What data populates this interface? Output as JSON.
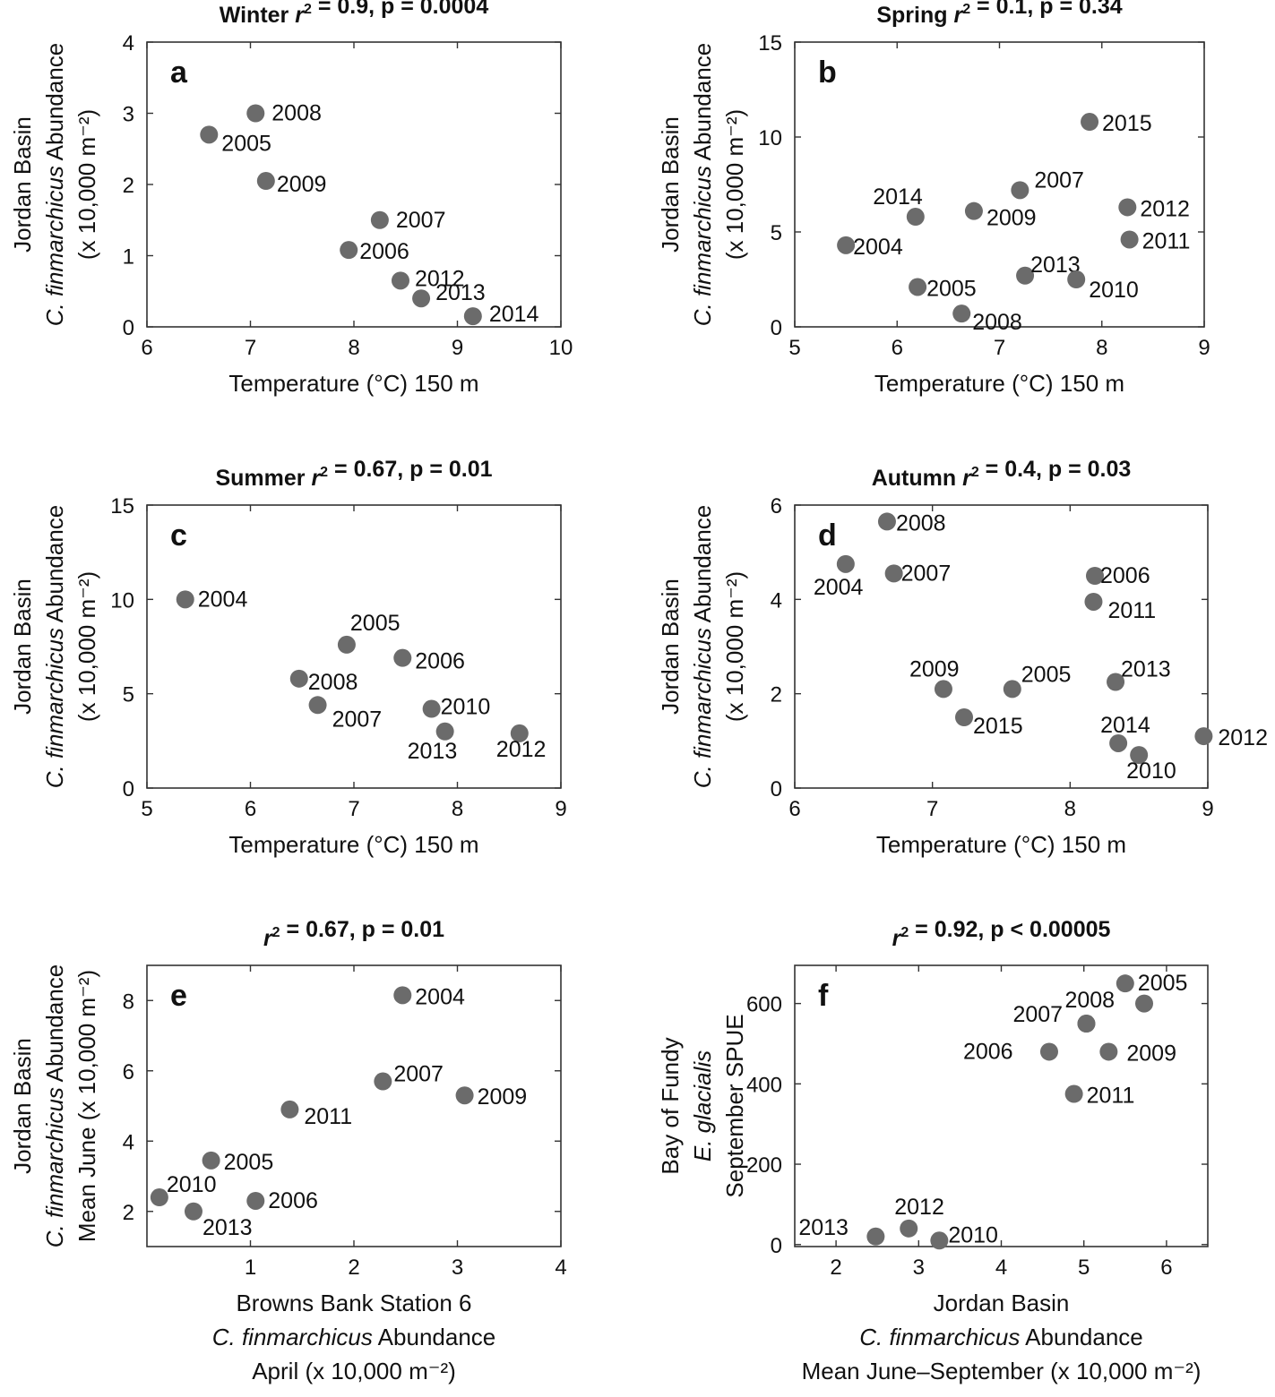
{
  "point_color": "#6b6b6b",
  "chart_data": [
    {
      "type": "scatter",
      "panel": "a",
      "title": "Winter r² = 0.9, p = 0.0004",
      "xlabel": [
        "Temperature (°C) 150 m"
      ],
      "ylabel": [
        "Jordan Basin",
        "C. finmarchicus Abundance",
        "(x 10,000 m⁻²)"
      ],
      "xlim": [
        6,
        10
      ],
      "ylim": [
        0,
        4
      ],
      "xticks": [
        6,
        7,
        8,
        9,
        10
      ],
      "yticks": [
        0,
        1,
        2,
        3,
        4
      ],
      "points": [
        {
          "label": "2008",
          "x": 7.05,
          "y": 3.0
        },
        {
          "label": "2005",
          "x": 6.6,
          "y": 2.7
        },
        {
          "label": "2009",
          "x": 7.15,
          "y": 2.05
        },
        {
          "label": "2007",
          "x": 8.25,
          "y": 1.5
        },
        {
          "label": "2006",
          "x": 7.95,
          "y": 1.08
        },
        {
          "label": "2012",
          "x": 8.45,
          "y": 0.65
        },
        {
          "label": "2013",
          "x": 8.65,
          "y": 0.4
        },
        {
          "label": "2014",
          "x": 9.15,
          "y": 0.15
        }
      ]
    },
    {
      "type": "scatter",
      "panel": "b",
      "title": "Spring r² = 0.1, p = 0.34",
      "xlabel": [
        "Temperature (°C) 150 m"
      ],
      "ylabel": [
        "Jordan Basin",
        "C. finmarchicus Abundance",
        "(x 10,000 m⁻²)"
      ],
      "xlim": [
        5,
        9
      ],
      "ylim": [
        0,
        15
      ],
      "xticks": [
        5,
        6,
        7,
        8,
        9
      ],
      "yticks": [
        0,
        5,
        10,
        15
      ],
      "points": [
        {
          "label": "2015",
          "x": 7.88,
          "y": 10.8
        },
        {
          "label": "2007",
          "x": 7.2,
          "y": 7.2
        },
        {
          "label": "2014",
          "x": 6.18,
          "y": 5.8
        },
        {
          "label": "2009",
          "x": 6.75,
          "y": 6.1
        },
        {
          "label": "2012",
          "x": 8.25,
          "y": 6.3
        },
        {
          "label": "2011",
          "x": 8.27,
          "y": 4.6
        },
        {
          "label": "2004",
          "x": 5.5,
          "y": 4.3
        },
        {
          "label": "2013",
          "x": 7.25,
          "y": 2.7
        },
        {
          "label": "2010",
          "x": 7.75,
          "y": 2.5
        },
        {
          "label": "2005",
          "x": 6.2,
          "y": 2.1
        },
        {
          "label": "2008",
          "x": 6.63,
          "y": 0.7
        }
      ]
    },
    {
      "type": "scatter",
      "panel": "c",
      "title": "Summer r² = 0.67, p = 0.01",
      "xlabel": [
        "Temperature (°C) 150 m"
      ],
      "ylabel": [
        "Jordan Basin",
        "C. finmarchicus Abundance",
        "(x 10,000 m⁻²)"
      ],
      "xlim": [
        5,
        9
      ],
      "ylim": [
        0,
        15
      ],
      "xticks": [
        5,
        6,
        7,
        8,
        9
      ],
      "yticks": [
        0,
        5,
        10,
        15
      ],
      "points": [
        {
          "label": "2004",
          "x": 5.37,
          "y": 10.0
        },
        {
          "label": "2005",
          "x": 6.93,
          "y": 7.6
        },
        {
          "label": "2006",
          "x": 7.47,
          "y": 6.9
        },
        {
          "label": "2008",
          "x": 6.47,
          "y": 5.8
        },
        {
          "label": "2007",
          "x": 6.65,
          "y": 4.4
        },
        {
          "label": "2010",
          "x": 7.75,
          "y": 4.2
        },
        {
          "label": "2013",
          "x": 7.88,
          "y": 3.0
        },
        {
          "label": "2012",
          "x": 8.6,
          "y": 2.9
        }
      ]
    },
    {
      "type": "scatter",
      "panel": "d",
      "title": "Autumn r² = 0.4, p = 0.03",
      "xlabel": [
        "Temperature (°C) 150 m"
      ],
      "ylabel": [
        "Jordan Basin",
        "C. finmarchicus Abundance",
        "(x 10,000 m⁻²)"
      ],
      "xlim": [
        6,
        9
      ],
      "ylim": [
        0,
        6
      ],
      "xticks": [
        6,
        7,
        8,
        9
      ],
      "yticks": [
        0,
        2,
        4,
        6
      ],
      "points": [
        {
          "label": "2008",
          "x": 6.67,
          "y": 5.65
        },
        {
          "label": "2004",
          "x": 6.37,
          "y": 4.75
        },
        {
          "label": "2007",
          "x": 6.72,
          "y": 4.55
        },
        {
          "label": "2006",
          "x": 8.18,
          "y": 4.5
        },
        {
          "label": "2011",
          "x": 8.17,
          "y": 3.95
        },
        {
          "label": "2009",
          "x": 7.08,
          "y": 2.1
        },
        {
          "label": "2005",
          "x": 7.58,
          "y": 2.1
        },
        {
          "label": "2013",
          "x": 8.33,
          "y": 2.25
        },
        {
          "label": "2015",
          "x": 7.23,
          "y": 1.5
        },
        {
          "label": "2014",
          "x": 8.35,
          "y": 0.95
        },
        {
          "label": "2010",
          "x": 8.5,
          "y": 0.7
        },
        {
          "label": "2012",
          "x": 8.97,
          "y": 1.1
        }
      ]
    },
    {
      "type": "scatter",
      "panel": "e",
      "title": "r² = 0.67, p = 0.01",
      "xlabel": [
        "Browns Bank Station 6",
        "C. finmarchicus Abundance",
        "April (x 10,000 m⁻²)"
      ],
      "ylabel": [
        "Jordan Basin",
        "C. finmarchicus Abundance",
        "Mean June (x 10,000 m⁻²)"
      ],
      "xlim": [
        0,
        4
      ],
      "ylim": [
        1,
        9
      ],
      "xticks": [
        1,
        2,
        3,
        4
      ],
      "yticks": [
        2,
        4,
        6,
        8
      ],
      "points": [
        {
          "label": "2004",
          "x": 2.47,
          "y": 8.15
        },
        {
          "label": "2007",
          "x": 2.28,
          "y": 5.7
        },
        {
          "label": "2009",
          "x": 3.07,
          "y": 5.3
        },
        {
          "label": "2011",
          "x": 1.38,
          "y": 4.9
        },
        {
          "label": "2005",
          "x": 0.62,
          "y": 3.45
        },
        {
          "label": "2010",
          "x": 0.12,
          "y": 2.4
        },
        {
          "label": "2006",
          "x": 1.05,
          "y": 2.3
        },
        {
          "label": "2013",
          "x": 0.45,
          "y": 2.0
        }
      ]
    },
    {
      "type": "scatter",
      "panel": "f",
      "title": "r² = 0.92, p < 0.00005",
      "xlabel": [
        "Jordan Basin",
        "C. finmarchicus Abundance",
        "Mean June–September (x 10,000 m⁻²)"
      ],
      "ylabel": [
        "Bay of Fundy",
        "E. glacialis",
        "September SPUE"
      ],
      "xlim": [
        1.5,
        6.5
      ],
      "ylim": [
        -5,
        695
      ],
      "xticks": [
        2,
        3,
        4,
        5,
        6
      ],
      "yticks": [
        0,
        200,
        400,
        600
      ],
      "points": [
        {
          "label": "2005",
          "x": 5.5,
          "y": 650
        },
        {
          "label": "2008",
          "x": 5.03,
          "y": 550
        },
        {
          "label": "2007",
          "x": 5.03,
          "y": 550
        },
        {
          "label": "2009",
          "x": 5.3,
          "y": 480
        },
        {
          "label": "2006",
          "x": 4.58,
          "y": 480
        },
        {
          "label": "2011",
          "x": 4.88,
          "y": 375
        },
        {
          "label": "2012",
          "x": 2.88,
          "y": 40
        },
        {
          "label": "2013",
          "x": 2.48,
          "y": 20
        },
        {
          "label": "2010",
          "x": 3.25,
          "y": 10
        },
        {
          "label": "",
          "x": 5.73,
          "y": 600
        }
      ]
    }
  ]
}
